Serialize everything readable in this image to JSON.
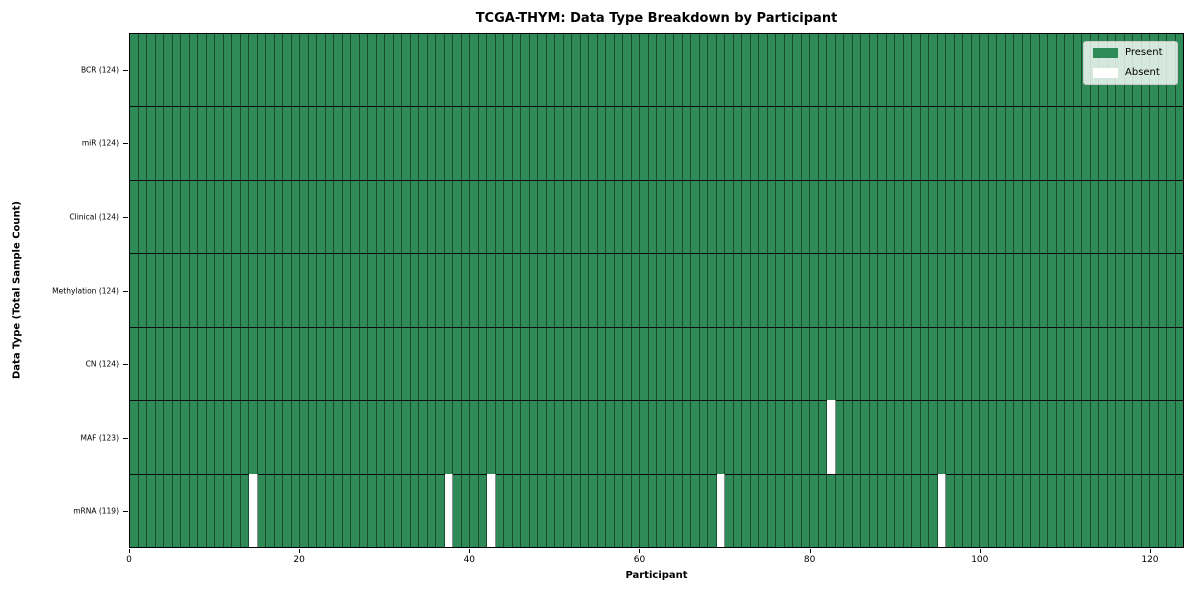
{
  "chart_data": {
    "type": "heatmap",
    "title": "TCGA-THYM: Data Type Breakdown by Participant",
    "xlabel": "Participant",
    "ylabel": "Data Type (Total Sample Count)",
    "n_participants": 124,
    "xlim": [
      0,
      124
    ],
    "x_ticks": [
      0,
      20,
      40,
      60,
      80,
      100,
      120
    ],
    "grid": false,
    "legend_position": "upper right",
    "legend": [
      {
        "label": "Present",
        "color": "#2e8b57"
      },
      {
        "label": "Absent",
        "color": "#ffffff"
      }
    ],
    "rows": [
      {
        "data_type": "BCR",
        "label": "BCR (124)",
        "present_count": 124,
        "absent_participants": []
      },
      {
        "data_type": "miR",
        "label": "miR (124)",
        "present_count": 124,
        "absent_participants": []
      },
      {
        "data_type": "Clinical",
        "label": "Clinical (124)",
        "present_count": 124,
        "absent_participants": []
      },
      {
        "data_type": "Methylation",
        "label": "Methylation (124)",
        "present_count": 124,
        "absent_participants": []
      },
      {
        "data_type": "CN",
        "label": "CN (124)",
        "present_count": 124,
        "absent_participants": []
      },
      {
        "data_type": "MAF",
        "label": "MAF (123)",
        "present_count": 123,
        "absent_participants": [
          82
        ]
      },
      {
        "data_type": "mRNA",
        "label": "mRNA (119)",
        "present_count": 119,
        "absent_participants": [
          14,
          37,
          42,
          69,
          95
        ]
      }
    ],
    "colors": {
      "present": "#2e8b57",
      "absent": "#ffffff",
      "cell_edge": "rgba(0,0,0,0.45)",
      "row_separator": "#0d0d0d",
      "spine": "#000000"
    }
  }
}
